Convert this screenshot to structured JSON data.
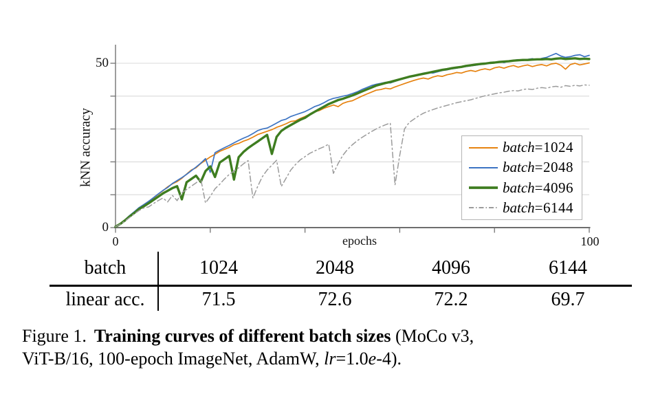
{
  "chart_data": [
    {
      "type": "line",
      "title": "",
      "xlabel": "epochs",
      "ylabel": "kNN accuracy",
      "xlim": [
        0,
        100
      ],
      "ylim": [
        0,
        55.5
      ],
      "x_ticks": [
        0,
        20,
        40,
        60,
        80,
        100
      ],
      "x_tick_labels": {
        "left": "0",
        "right": "100"
      },
      "y_ticks": [
        0,
        10,
        20,
        30,
        40,
        50
      ],
      "y_tick_labels": {
        "top": "50",
        "bottom": "0"
      },
      "grid": "horizontal-only",
      "legend_position": "lower-right",
      "x_step": 1,
      "series": [
        {
          "name": "batch-1024",
          "label_italic": "batch",
          "label_rest": "=1024",
          "color": "#e6820f",
          "width": 1.7,
          "dash": null,
          "values": [
            0.3,
            1.2,
            2.4,
            3.6,
            4.8,
            6.0,
            7.0,
            8.0,
            9.0,
            10.1,
            11.2,
            12.4,
            13.3,
            14.0,
            15.0,
            16.3,
            17.5,
            18.2,
            19.5,
            20.5,
            21.5,
            22.3,
            23.2,
            23.8,
            24.4,
            25.2,
            25.6,
            26.3,
            26.8,
            27.5,
            28.3,
            28.8,
            29.3,
            29.8,
            30.5,
            31.0,
            31.6,
            32.3,
            32.5,
            33.2,
            33.8,
            34.5,
            35.2,
            35.6,
            36.3,
            36.8,
            37.3,
            36.8,
            37.8,
            38.3,
            38.6,
            39.3,
            40.0,
            40.6,
            41.2,
            41.8,
            42.0,
            42.4,
            42.2,
            42.8,
            43.3,
            43.8,
            44.3,
            44.8,
            45.2,
            45.5,
            45.2,
            45.8,
            46.2,
            46.0,
            46.5,
            46.8,
            47.2,
            47.0,
            47.5,
            47.8,
            47.5,
            48.0,
            48.3,
            48.0,
            48.6,
            48.9,
            48.5,
            49.0,
            49.3,
            48.8,
            49.2,
            49.5,
            49.0,
            49.4,
            49.6,
            49.2,
            49.8,
            50.0,
            49.4,
            48.2,
            49.6,
            50.0,
            49.5,
            49.8,
            50.1
          ]
        },
        {
          "name": "batch-2048",
          "label_italic": "batch",
          "label_rest": "=2048",
          "color": "#3c73c3",
          "width": 1.7,
          "dash": null,
          "values": [
            0.3,
            1.2,
            2.4,
            3.7,
            4.9,
            6.1,
            7.0,
            8.0,
            9.1,
            10.2,
            11.3,
            12.2,
            13.4,
            14.3,
            15.2,
            16.2,
            17.3,
            18.4,
            19.6,
            21.0,
            16.8,
            22.8,
            23.6,
            24.3,
            25.0,
            25.8,
            26.5,
            27.2,
            27.8,
            28.6,
            29.5,
            30.0,
            30.3,
            31.0,
            31.8,
            32.6,
            33.0,
            33.8,
            34.3,
            34.8,
            35.3,
            36.0,
            36.8,
            37.3,
            38.0,
            38.8,
            39.3,
            39.6,
            40.0,
            40.3,
            40.8,
            41.3,
            42.0,
            42.6,
            43.2,
            43.6,
            43.9,
            44.2,
            44.0,
            44.5,
            45.0,
            45.4,
            45.8,
            46.2,
            46.6,
            47.0,
            47.2,
            47.0,
            47.4,
            47.8,
            48.0,
            48.3,
            48.5,
            48.8,
            49.0,
            49.2,
            49.4,
            49.6,
            49.8,
            50.0,
            50.3,
            50.5,
            50.2,
            50.6,
            50.9,
            51.1,
            50.8,
            51.2,
            51.4,
            51.0,
            51.5,
            51.8,
            52.4,
            53.0,
            52.2,
            51.8,
            52.0,
            52.4,
            52.6,
            52.0,
            52.4
          ]
        },
        {
          "name": "batch-4096",
          "label_italic": "batch",
          "label_rest": "=4096",
          "color": "#3e7d20",
          "width": 3.4,
          "dash": null,
          "values": [
            0.3,
            1.1,
            2.2,
            3.4,
            4.5,
            5.7,
            6.5,
            7.4,
            8.4,
            9.4,
            10.4,
            11.2,
            12.0,
            12.6,
            8.6,
            13.8,
            14.8,
            15.8,
            13.9,
            17.2,
            18.6,
            15.4,
            19.8,
            20.8,
            21.8,
            14.6,
            21.4,
            23.0,
            24.2,
            25.2,
            26.2,
            27.2,
            28.2,
            22.4,
            27.6,
            29.4,
            30.4,
            31.2,
            32.0,
            32.8,
            33.4,
            34.4,
            35.2,
            36.0,
            36.8,
            37.6,
            38.2,
            38.8,
            39.2,
            39.7,
            40.2,
            40.8,
            41.4,
            42.0,
            42.6,
            43.2,
            43.6,
            44.0,
            44.3,
            44.7,
            45.1,
            45.5,
            45.9,
            46.2,
            46.5,
            46.8,
            47.1,
            47.4,
            47.7,
            48.0,
            48.2,
            48.5,
            48.7,
            48.9,
            49.2,
            49.4,
            49.6,
            49.8,
            49.9,
            50.1,
            50.2,
            50.4,
            50.5,
            50.6,
            50.8,
            50.9,
            51.0,
            51.0,
            51.1,
            51.2,
            51.2,
            51.3,
            51.2,
            51.4,
            51.5,
            51.3,
            51.4,
            51.5,
            51.3,
            51.4,
            51.3
          ]
        },
        {
          "name": "batch-6144",
          "label_italic": "batch",
          "label_rest": "=6144",
          "color": "#9b9b9b",
          "width": 1.5,
          "dash": "8 4 2 4",
          "values": [
            0.3,
            1.0,
            2.0,
            3.1,
            4.2,
            5.2,
            6.0,
            6.3,
            7.3,
            8.2,
            9.0,
            7.8,
            9.8,
            8.2,
            10.6,
            11.6,
            12.6,
            13.6,
            14.8,
            7.5,
            9.5,
            11.8,
            13.2,
            14.8,
            16.2,
            17.2,
            18.2,
            19.4,
            20.4,
            9.0,
            12.5,
            15.5,
            17.5,
            19.0,
            20.5,
            12.5,
            15.0,
            17.5,
            19.2,
            20.6,
            21.6,
            22.6,
            23.3,
            24.0,
            24.6,
            25.4,
            16.5,
            19.5,
            22.0,
            23.8,
            25.2,
            26.4,
            27.4,
            28.3,
            29.2,
            30.0,
            30.7,
            31.3,
            31.8,
            13.0,
            22.0,
            30.0,
            32.0,
            33.0,
            34.0,
            34.8,
            35.4,
            35.9,
            36.4,
            36.8,
            37.2,
            37.6,
            38.0,
            38.3,
            38.6,
            38.9,
            39.3,
            39.7,
            40.1,
            40.4,
            40.7,
            41.0,
            41.2,
            41.5,
            41.7,
            41.6,
            42.0,
            42.2,
            42.0,
            42.4,
            42.6,
            42.4,
            42.8,
            43.0,
            42.7,
            43.2,
            43.0,
            43.3,
            43.1,
            43.4,
            43.3
          ]
        }
      ]
    },
    {
      "type": "table",
      "rows": [
        [
          "batch",
          "1024",
          "2048",
          "4096",
          "6144"
        ],
        [
          "linear acc.",
          "71.5",
          "72.6",
          "72.2",
          "69.7"
        ]
      ]
    }
  ],
  "caption": {
    "line1": [
      {
        "text": "Figure 1.",
        "style": "normal",
        "gap_after": true
      },
      {
        "text": "Training curves of different batch sizes",
        "style": "bold"
      },
      {
        "text": " (MoCo v3,",
        "style": "normal"
      }
    ],
    "line2": [
      {
        "text": "ViT-B/16, 100-epoch ImageNet, AdamW, ",
        "style": "normal"
      },
      {
        "text": "lr",
        "style": "italic"
      },
      {
        "text": "=1.0",
        "style": "normal"
      },
      {
        "text": "e",
        "style": "italic"
      },
      {
        "text": "-4).",
        "style": "normal"
      }
    ]
  }
}
